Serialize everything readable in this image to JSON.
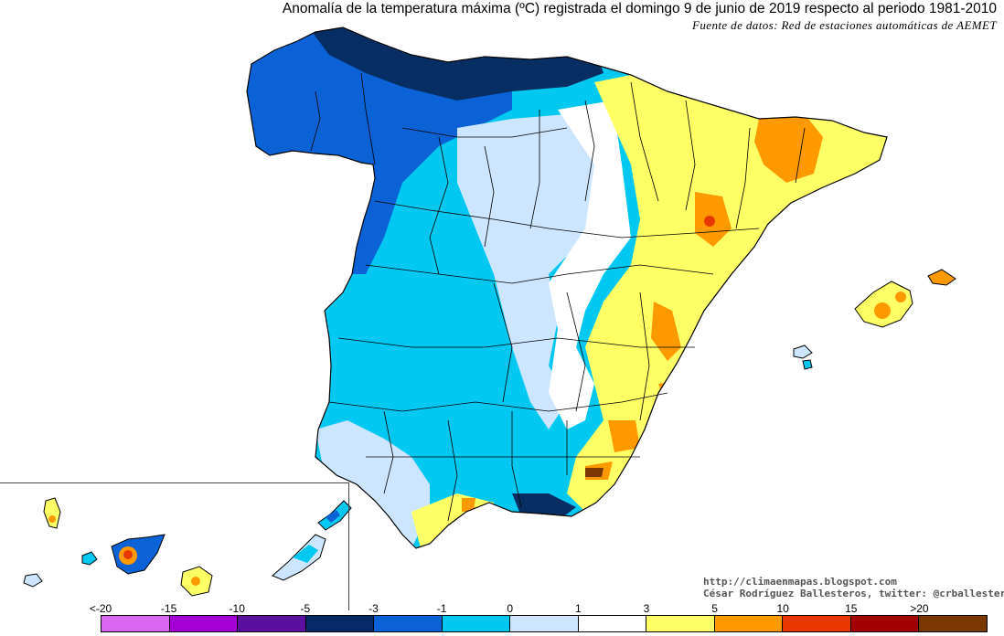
{
  "header": {
    "title": "Anomalía de la temperatura máxima (ºC) registrada el domingo 9 de junio de 2019 respecto al periodo 1981-2010",
    "source": "Fuente de datos: Red de estaciones automáticas de AEMET"
  },
  "credits": {
    "blog": "http://climaenmapas.blogspot.com",
    "author": "César Rodríguez Ballesteros, twitter: @crballesteros"
  },
  "legend": {
    "ticks": [
      "<-20",
      "-15",
      "-10",
      "-5",
      "-3",
      "-1",
      "0",
      "1",
      "3",
      "5",
      "10",
      "15",
      ">20"
    ],
    "colors": [
      "#d966f0",
      "#a300d6",
      "#5a0f9e",
      "#062a66",
      "#0a62d6",
      "#00c8f0",
      "#cce6ff",
      "#ffffff",
      "#ffff66",
      "#ff9900",
      "#e83800",
      "#a30000",
      "#7a3800"
    ]
  },
  "map_colors": {
    "dark_navy": "#072e63",
    "dark_blue": "#0a62d6",
    "cyan": "#00c8f0",
    "light_blue": "#cce6ff",
    "white": "#ffffff",
    "yellow": "#ffff66",
    "orange": "#ff9900",
    "red": "#e83800",
    "brown": "#7a3800"
  }
}
